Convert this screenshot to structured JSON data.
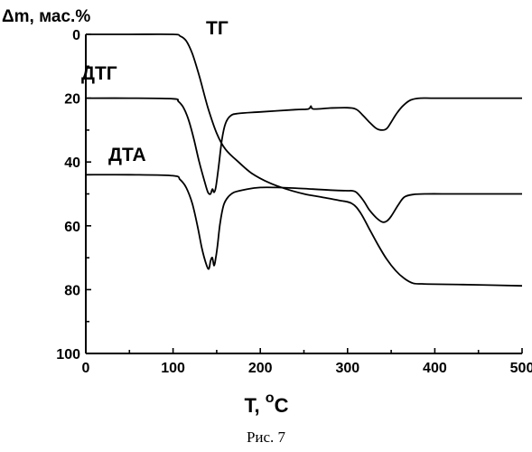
{
  "chart_data": {
    "type": "line",
    "ylabel": "Δm, мас.%",
    "xlabel_main": "T, ",
    "xlabel_sup": "o",
    "xlabel_unit": "C",
    "xlim": [
      0,
      500
    ],
    "ylim": [
      0,
      100
    ],
    "y_inverted": true,
    "xticks": [
      0,
      100,
      200,
      300,
      400,
      500
    ],
    "yticks": [
      0,
      20,
      40,
      60,
      80,
      100
    ],
    "grid": false,
    "legend": "none",
    "series": [
      {
        "name": "ТГ",
        "x": [
          0,
          50,
          100,
          108,
          115,
          122,
          130,
          140,
          150,
          160,
          175,
          190,
          210,
          230,
          250,
          270,
          290,
          305,
          315,
          325,
          335,
          345,
          355,
          365,
          375,
          385,
          400,
          450,
          500
        ],
        "y": [
          0,
          0,
          0,
          0.5,
          2,
          6,
          13,
          23,
          31,
          36,
          40,
          43.5,
          46.5,
          48.5,
          50,
          51,
          52,
          53,
          56,
          61,
          66,
          70.5,
          74,
          76.5,
          78,
          78.2,
          78.3,
          78.5,
          78.8
        ]
      },
      {
        "name": "ДТГ",
        "x": [
          0,
          50,
          100,
          106,
          112,
          118,
          124,
          130,
          136,
          140,
          143,
          145,
          147,
          149,
          152,
          156,
          160,
          166,
          175,
          200,
          240,
          255,
          258,
          261,
          280,
          300,
          310,
          318,
          325,
          333,
          340,
          345,
          350,
          357,
          365,
          373,
          383,
          400,
          450,
          500
        ],
        "y": [
          20,
          20,
          20.2,
          21,
          23,
          27,
          33,
          40,
          46,
          49.5,
          50,
          48.5,
          49.5,
          48,
          42,
          33,
          28,
          25.5,
          24.8,
          24.3,
          23.6,
          23.4,
          22.5,
          23.4,
          23.1,
          23,
          23.5,
          25.5,
          27.5,
          29.5,
          30,
          29.5,
          27.5,
          24.5,
          22,
          20.5,
          20,
          20,
          20,
          20
        ]
      },
      {
        "name": "ДТА",
        "x": [
          0,
          50,
          100,
          108,
          115,
          122,
          128,
          133,
          138,
          141,
          143,
          145,
          147,
          149,
          151,
          154,
          158,
          163,
          170,
          185,
          200,
          220,
          240,
          260,
          280,
          300,
          305,
          310,
          318,
          325,
          333,
          340,
          345,
          350,
          358,
          365,
          375,
          390,
          420,
          460,
          500
        ],
        "y": [
          44,
          44,
          44.3,
          45.5,
          48,
          53,
          60,
          67,
          72,
          73.5,
          71,
          70,
          72.5,
          70,
          66,
          59,
          53.5,
          51,
          49.5,
          48.5,
          48,
          48,
          48.2,
          48.5,
          48.8,
          49,
          49,
          49.5,
          52,
          55,
          57.5,
          58.8,
          58.5,
          57,
          53.5,
          51,
          50.2,
          50,
          50,
          50,
          50
        ]
      }
    ]
  },
  "caption": "Рис. 7"
}
